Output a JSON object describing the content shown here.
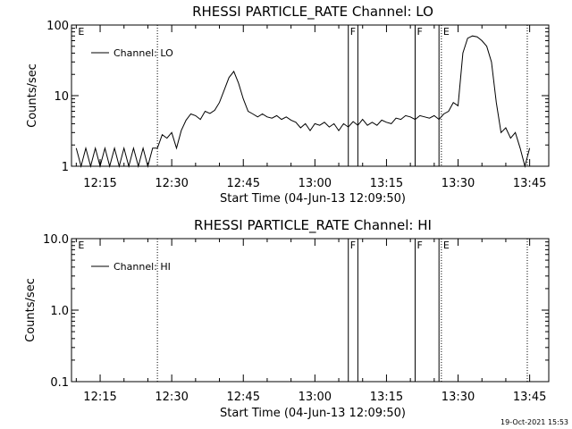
{
  "chart_data": [
    {
      "type": "line",
      "title": "RHESSI PARTICLE_RATE Channel: LO",
      "xlabel": "Start Time (04-Jun-13 12:09:50)",
      "ylabel": "Counts/sec",
      "yscale": "log",
      "ylim": [
        1,
        100
      ],
      "xlim": [
        "12:09:50",
        "13:49:50"
      ],
      "x_ticks": [
        "12:15",
        "12:30",
        "12:45",
        "13:00",
        "13:15",
        "13:30",
        "13:45"
      ],
      "y_ticks": [
        "1",
        "10",
        "100"
      ],
      "legend": "Channel: LO",
      "legend_position": "top-left",
      "markers": [
        {
          "label": "E",
          "time": "12:10",
          "style": "edge"
        },
        {
          "label": "",
          "time": "12:27",
          "style": "dotted"
        },
        {
          "label": "F",
          "time": "13:07",
          "style": "solid"
        },
        {
          "label": "",
          "time": "13:09",
          "style": "solid"
        },
        {
          "label": "F",
          "time": "13:21",
          "style": "solid"
        },
        {
          "label": "",
          "time": "13:26",
          "style": "solid"
        },
        {
          "label": "E",
          "time": "13:26.5",
          "style": "dotted"
        },
        {
          "label": "",
          "time": "13:44.5",
          "style": "dotted"
        }
      ],
      "series": [
        {
          "name": "Channel: LO",
          "x": [
            "12:10",
            "12:11",
            "12:12",
            "12:13",
            "12:14",
            "12:15",
            "12:16",
            "12:17",
            "12:18",
            "12:19",
            "12:20",
            "12:21",
            "12:22",
            "12:23",
            "12:24",
            "12:25",
            "12:26",
            "12:27",
            "12:28",
            "12:29",
            "12:30",
            "12:31",
            "12:32",
            "12:33",
            "12:34",
            "12:35",
            "12:36",
            "12:37",
            "12:38",
            "12:39",
            "12:40",
            "12:41",
            "12:42",
            "12:43",
            "12:44",
            "12:45",
            "12:46",
            "12:47",
            "12:48",
            "12:49",
            "12:50",
            "12:51",
            "12:52",
            "12:53",
            "12:54",
            "12:55",
            "12:56",
            "12:57",
            "12:58",
            "12:59",
            "13:00",
            "13:01",
            "13:02",
            "13:03",
            "13:04",
            "13:05",
            "13:06",
            "13:07",
            "13:08",
            "13:09",
            "13:10",
            "13:11",
            "13:12",
            "13:13",
            "13:14",
            "13:15",
            "13:16",
            "13:17",
            "13:18",
            "13:19",
            "13:20",
            "13:21",
            "13:22",
            "13:23",
            "13:24",
            "13:25",
            "13:26",
            "13:27",
            "13:28",
            "13:29",
            "13:30",
            "13:31",
            "13:32",
            "13:33",
            "13:34",
            "13:35",
            "13:36",
            "13:37",
            "13:38",
            "13:39",
            "13:40",
            "13:41",
            "13:42",
            "13:43",
            "13:44",
            "13:45"
          ],
          "y": [
            1.8,
            1.0,
            1.8,
            1.0,
            1.8,
            1.0,
            1.8,
            1.0,
            1.8,
            1.0,
            1.8,
            1.0,
            1.8,
            1.0,
            1.8,
            1.0,
            1.8,
            1.8,
            2.8,
            2.5,
            3.0,
            1.8,
            3.2,
            4.5,
            5.5,
            5.2,
            4.6,
            6.0,
            5.6,
            6.2,
            8.0,
            12,
            18,
            22,
            15,
            9,
            6,
            5.5,
            5,
            5.5,
            5,
            4.8,
            5.2,
            4.6,
            5,
            4.5,
            4.2,
            3.5,
            4,
            3.2,
            4,
            3.8,
            4.2,
            3.6,
            4,
            3.2,
            4,
            3.6,
            4.3,
            3.8,
            4.6,
            3.8,
            4.2,
            3.8,
            4.5,
            4.2,
            4.0,
            4.8,
            4.6,
            5.2,
            5.0,
            4.6,
            5.2,
            5.0,
            4.8,
            5.2,
            4.6,
            5.5,
            6.0,
            8.0,
            7.2,
            40,
            65,
            70,
            68,
            60,
            50,
            30,
            8,
            3.0,
            3.5,
            2.5,
            3.0,
            1.8,
            1.0,
            1.8
          ]
        }
      ]
    },
    {
      "type": "line",
      "title": "RHESSI PARTICLE_RATE Channel: HI",
      "xlabel": "Start Time (04-Jun-13 12:09:50)",
      "ylabel": "Counts/sec",
      "yscale": "log",
      "ylim": [
        0.1,
        10.0
      ],
      "xlim": [
        "12:09:50",
        "13:49:50"
      ],
      "x_ticks": [
        "12:15",
        "12:30",
        "12:45",
        "13:00",
        "13:15",
        "13:30",
        "13:45"
      ],
      "y_ticks": [
        "0.1",
        "1.0",
        "10.0"
      ],
      "legend": "Channel: HI",
      "legend_position": "top-left",
      "markers": [
        {
          "label": "E",
          "time": "12:10",
          "style": "edge"
        },
        {
          "label": "",
          "time": "12:27",
          "style": "dotted"
        },
        {
          "label": "F",
          "time": "13:07",
          "style": "solid"
        },
        {
          "label": "",
          "time": "13:09",
          "style": "solid"
        },
        {
          "label": "F",
          "time": "13:21",
          "style": "solid"
        },
        {
          "label": "",
          "time": "13:26",
          "style": "solid"
        },
        {
          "label": "E",
          "time": "13:26.5",
          "style": "dotted"
        },
        {
          "label": "",
          "time": "13:44.5",
          "style": "dotted"
        }
      ],
      "series": []
    }
  ],
  "footer_date": "19-Oct-2021 15:53"
}
